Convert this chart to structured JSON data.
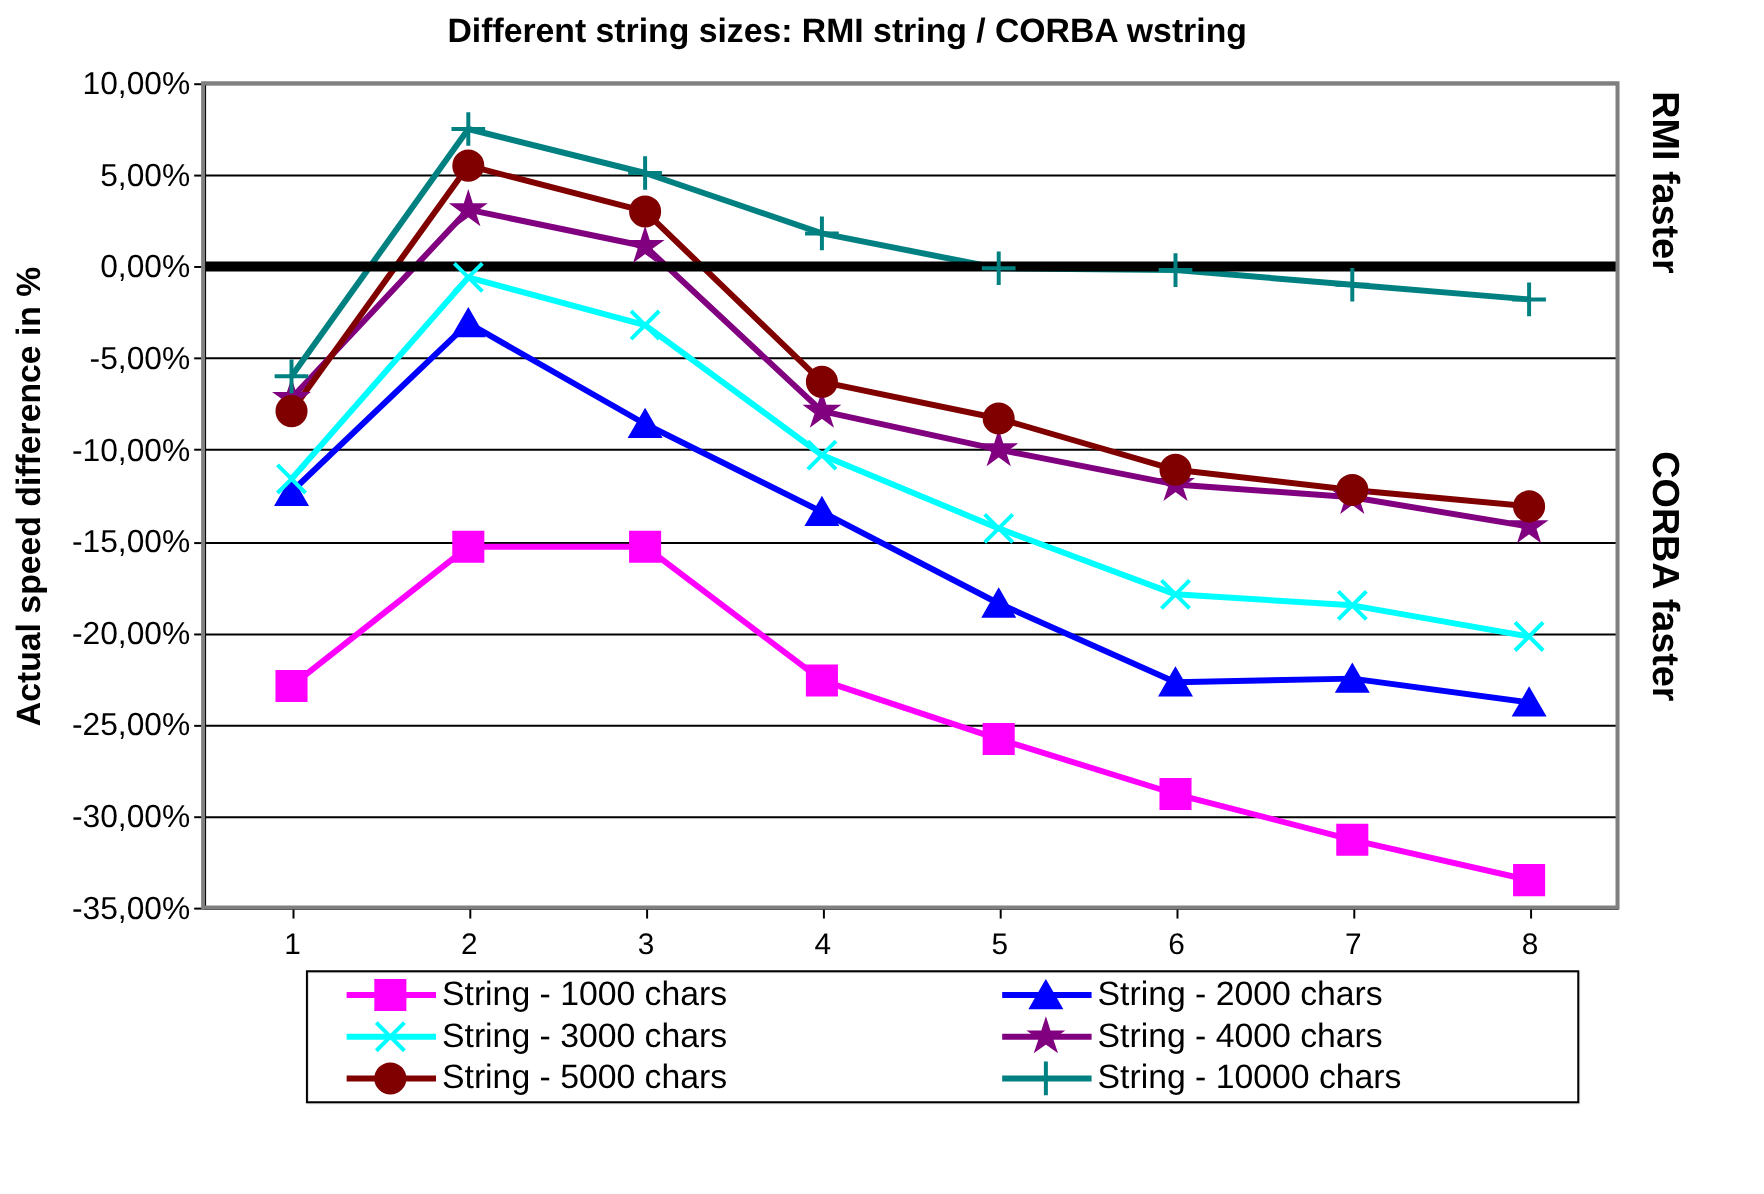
{
  "chart_data": {
    "type": "line",
    "title": "Different string sizes: RMI string / CORBA wstring",
    "ylabel": "Actual speed difference in %",
    "categories": [
      "1",
      "2",
      "3",
      "4",
      "5",
      "6",
      "7",
      "8"
    ],
    "series": [
      {
        "name": "String - 1000 chars",
        "color": "#ff00ff",
        "marker": "square",
        "values": [
          -22.9,
          -15.3,
          -15.3,
          -22.6,
          -25.8,
          -28.8,
          -31.3,
          -33.5
        ]
      },
      {
        "name": "String - 2000 chars",
        "color": "#0000ff",
        "marker": "triangle",
        "values": [
          -12.3,
          -3.1,
          -8.6,
          -13.4,
          -18.4,
          -22.7,
          -22.5,
          -23.8
        ]
      },
      {
        "name": "String - 3000 chars",
        "color": "#00ffff",
        "marker": "cross",
        "values": [
          -11.6,
          -0.6,
          -3.2,
          -10.3,
          -14.3,
          -17.9,
          -18.5,
          -20.2
        ]
      },
      {
        "name": "String - 4000 chars",
        "color": "#800080",
        "marker": "star",
        "values": [
          -7.2,
          3.1,
          1.1,
          -7.9,
          -10.0,
          -11.9,
          -12.6,
          -14.2
        ]
      },
      {
        "name": "String - 5000 chars",
        "color": "#800000",
        "marker": "circle",
        "values": [
          -7.9,
          5.5,
          3.0,
          -6.3,
          -8.3,
          -11.1,
          -12.2,
          -13.1
        ]
      },
      {
        "name": "String - 10000 chars",
        "color": "#008080",
        "marker": "plus",
        "values": [
          -6.0,
          7.5,
          5.1,
          1.8,
          -0.1,
          -0.2,
          -1.0,
          -1.8
        ]
      }
    ],
    "ylim": [
      -35,
      10
    ],
    "yticks": [
      {
        "value": 10,
        "label": "10,00%"
      },
      {
        "value": 5,
        "label": "5,00%"
      },
      {
        "value": 0,
        "label": "0,00%"
      },
      {
        "value": -5,
        "label": "-5,00%"
      },
      {
        "value": -10,
        "label": "-10,00%"
      },
      {
        "value": -15,
        "label": "-15,00%"
      },
      {
        "value": -20,
        "label": "-20,00%"
      },
      {
        "value": -25,
        "label": "-25,00%"
      },
      {
        "value": -30,
        "label": "-30,00%"
      },
      {
        "value": -35,
        "label": "-35,00%"
      }
    ],
    "ref_lines": [
      {
        "axis": "y",
        "value": 0,
        "color": "#000000"
      }
    ],
    "annotations": [
      "RMI faster",
      "CORBA faster"
    ],
    "grid": "y",
    "legend": "bottom",
    "line_style": "solid"
  }
}
